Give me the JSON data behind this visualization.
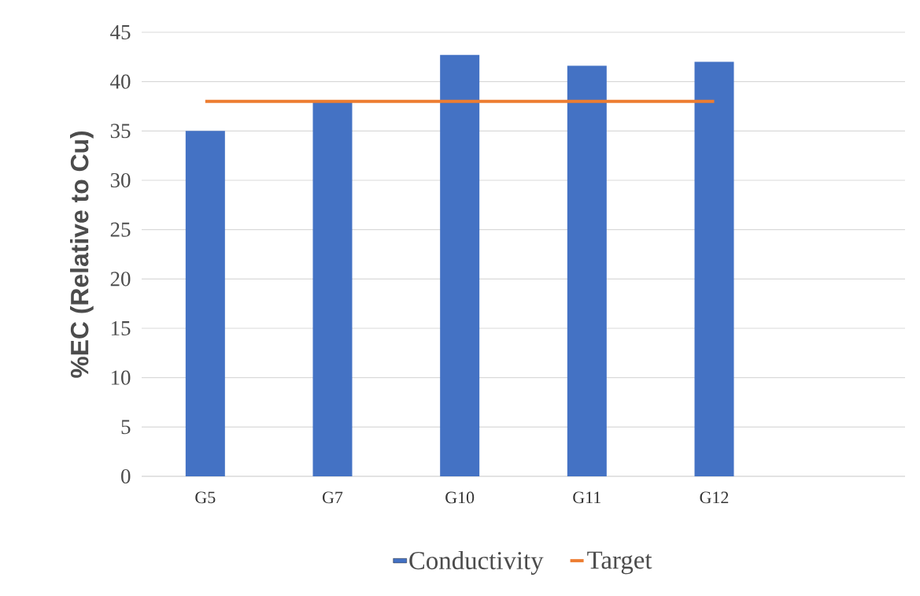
{
  "chart_data": {
    "type": "bar",
    "ylabel": "%EC (Relative to Cu)",
    "categories": [
      "G5",
      "G7",
      "G10",
      "G11",
      "G12",
      null
    ],
    "series": [
      {
        "name": "Conductivity",
        "color": "#4472c4",
        "values": [
          35,
          38,
          42.7,
          41.6,
          42,
          null
        ]
      },
      {
        "name": "Target",
        "type": "line",
        "color": "#ed7d31",
        "values": [
          38,
          38,
          38,
          38,
          38,
          null
        ]
      }
    ],
    "ylim": [
      0,
      45
    ],
    "yticks": [
      0,
      5,
      10,
      15,
      20,
      25,
      30,
      35,
      40,
      45
    ],
    "grid": "y",
    "legend": "bottom",
    "marker": "none"
  }
}
